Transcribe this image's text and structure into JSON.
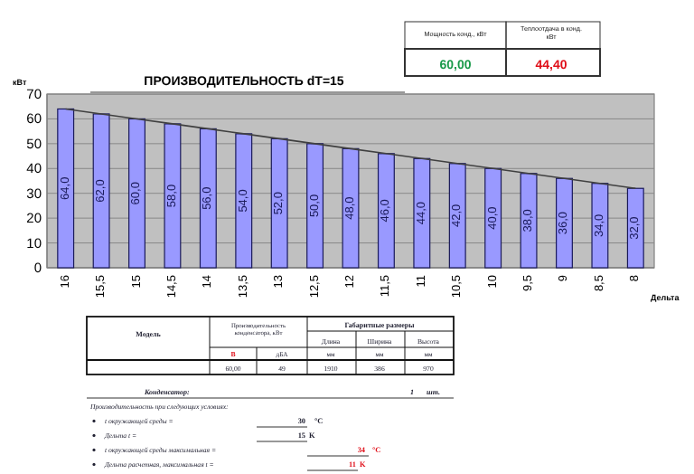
{
  "chart_data": {
    "type": "bar",
    "title": "ПРОИЗВОДИТЕЛЬНОСТЬ dT=15",
    "ylabel": "кВт",
    "xlabel": "Дельта",
    "categories": [
      "16",
      "15,5",
      "15",
      "14,5",
      "14",
      "13,5",
      "13",
      "12,5",
      "12",
      "11,5",
      "11",
      "10,5",
      "10",
      "9,5",
      "9",
      "8,5",
      "8"
    ],
    "series": [
      {
        "color": "#9999ff",
        "values": [
          64,
          62,
          60,
          58,
          56,
          54,
          52,
          50,
          48,
          46,
          44,
          42,
          40,
          38,
          36,
          34,
          32
        ],
        "value_labels": [
          "64,0",
          "62,0",
          "60,0",
          "58,0",
          "56,0",
          "54,0",
          "52,0",
          "50,0",
          "48,0",
          "46,0",
          "44,0",
          "42,0",
          "40,0",
          "38,0",
          "36,0",
          "34,0",
          "32,0"
        ]
      },
      {
        "type": "line",
        "color": "#404040",
        "values": [
          64,
          62,
          60,
          58,
          56,
          54,
          52,
          50,
          48,
          46,
          44,
          42,
          40,
          38,
          36,
          34,
          32
        ]
      }
    ],
    "ylim": [
      0,
      70
    ],
    "yticks": [
      0,
      10,
      20,
      30,
      40,
      50,
      60,
      70
    ],
    "grid": "y",
    "marker": "none",
    "annotations": [
      "Мощность конд., кВт",
      "Теплоотдача в конд. кВт",
      "60,00",
      "44,40",
      "Модель",
      "Производительность конденсатора, кВт",
      "Габаритные размеры",
      "Длина",
      "Ширина",
      "Высота",
      "В",
      "дБА",
      "мм",
      "мм",
      "мм",
      "60,00",
      "49",
      "1910",
      "386",
      "970",
      "Конденсатор:",
      "1",
      "шт.",
      "Производительность при следующих условиях:",
      "t окружающей среды =",
      "30",
      "°C",
      "Дельта t =",
      "15",
      "K",
      "t окружающей среды максимальная =",
      "34",
      "°C",
      "Дельта расчетная, максимальная t =",
      "11",
      "K"
    ]
  }
}
